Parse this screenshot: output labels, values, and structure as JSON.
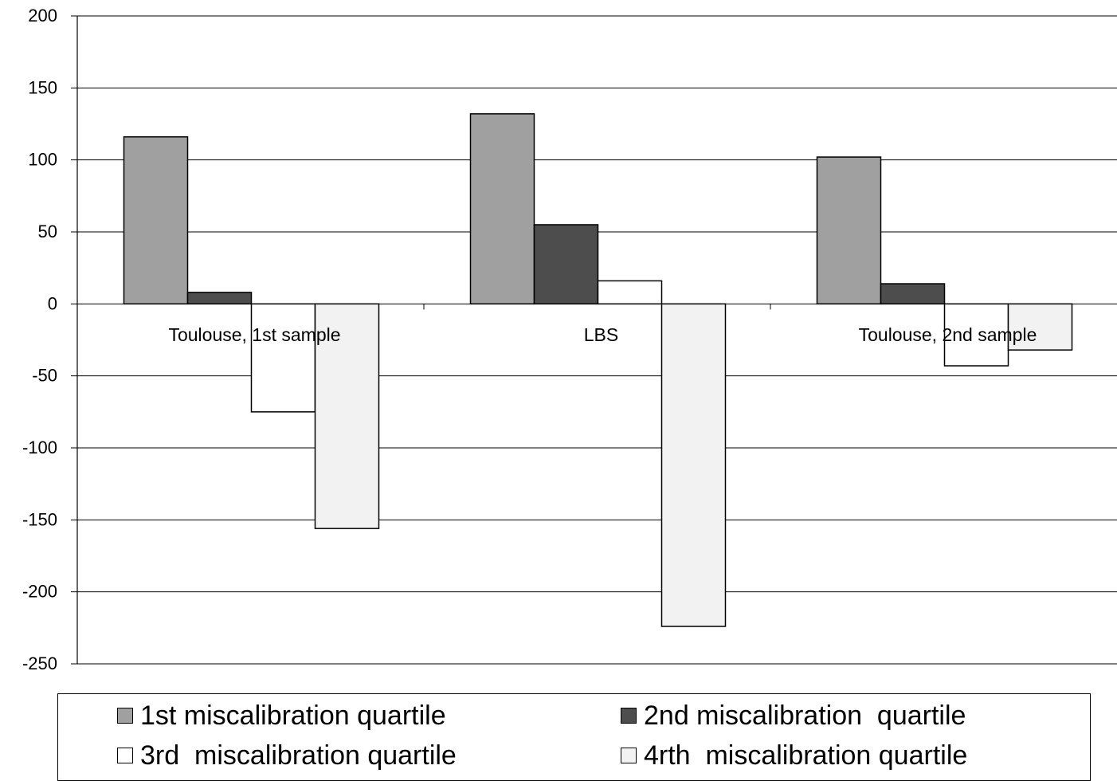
{
  "chart_data": {
    "type": "bar",
    "categories": [
      "Toulouse, 1st sample",
      "LBS",
      "Toulouse, 2nd sample"
    ],
    "series": [
      {
        "name": "1st miscalibration quartile",
        "values": [
          116,
          132,
          102
        ],
        "color": "#a0a0a0"
      },
      {
        "name": "2nd miscalibration  quartile",
        "values": [
          8,
          55,
          14
        ],
        "color": "#4d4d4d"
      },
      {
        "name": "3rd  miscalibration quartile",
        "values": [
          -75,
          16,
          -43
        ],
        "color": "#ffffff"
      },
      {
        "name": "4rth  miscalibration quartile",
        "values": [
          -156,
          -224,
          -32
        ],
        "color": "#f2f2f2"
      }
    ],
    "ylim": [
      -250,
      200
    ],
    "yticks": [
      "200",
      "150",
      "100",
      "50",
      "0",
      "-50",
      "-100",
      "-150",
      "-200",
      "-250"
    ],
    "grid": true,
    "legend_position": "bottom",
    "title": "",
    "xlabel": "",
    "ylabel": ""
  }
}
